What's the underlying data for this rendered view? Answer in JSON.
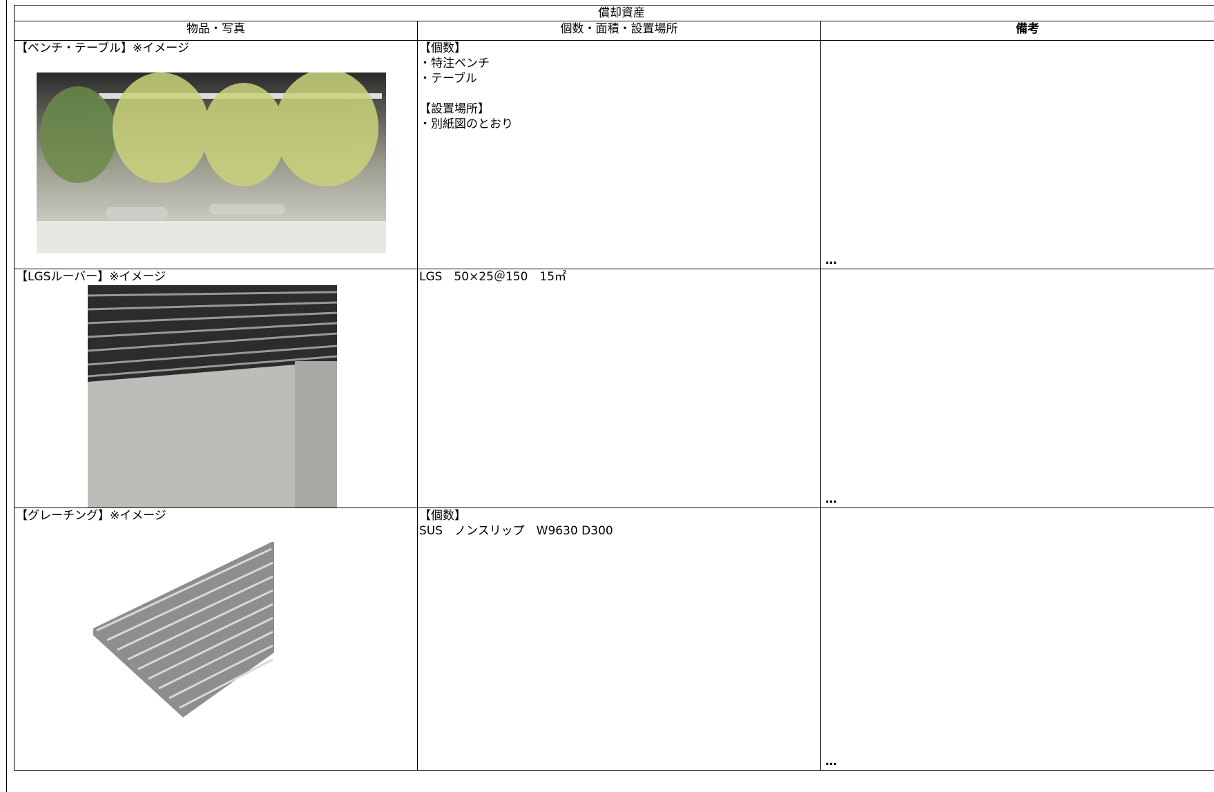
{
  "sheet": {
    "group_header": "償却資産",
    "columns": [
      "物品・写真",
      "個数・面積・設置場所",
      "備考"
    ],
    "rows": [
      {
        "name": "【ベンチ・テーブル】※イメージ",
        "details": [
          [
            "【個数】",
            "・特注ベンチ",
            "・テーブル"
          ],
          [
            "【設置場所】",
            "・別紙図のとおり"
          ]
        ],
        "remarks": "…"
      },
      {
        "name": "【LGSルーバー】※イメージ",
        "details": [
          [
            "LGS　50×25＠150　15㎡"
          ]
        ],
        "remarks": "…"
      },
      {
        "name": "【グレーチング】※イメージ",
        "details": [
          [
            "【個数】",
            "SUS　ノンスリップ　W9630 D300"
          ]
        ],
        "remarks": "…"
      }
    ]
  }
}
